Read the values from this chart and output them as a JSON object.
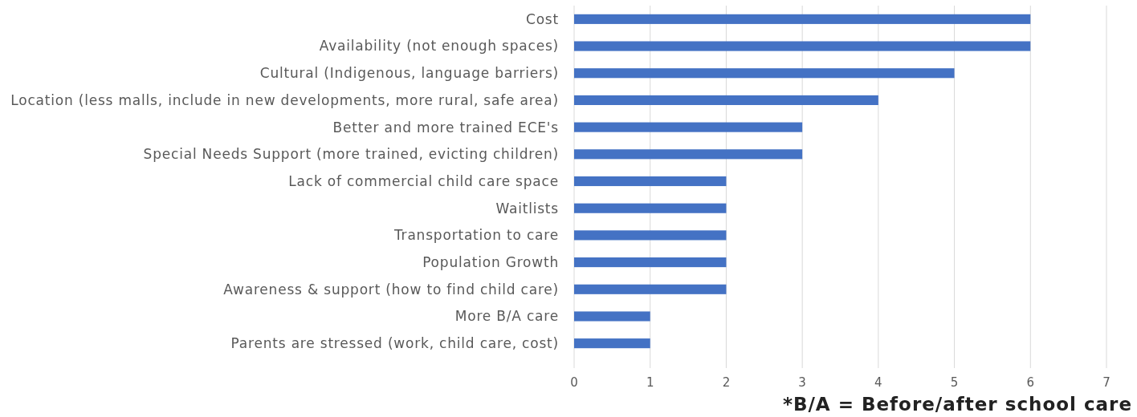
{
  "chart_data": {
    "type": "bar",
    "orientation": "horizontal",
    "categories": [
      "Cost",
      "Availability (not enough spaces)",
      "Cultural (Indigenous, language barriers)",
      "Location (less malls, include in new developments, more rural, safe area)",
      "Better and more trained ECE's",
      "Special Needs Support (more trained, evicting children)",
      "Lack of commercial child care space",
      "Waitlists",
      "Transportation to care",
      "Population Growth",
      "Awareness & support (how to find child care)",
      "More B/A care",
      "Parents are stressed (work, child care, cost)"
    ],
    "values": [
      6,
      6,
      5,
      4,
      3,
      3,
      2,
      2,
      2,
      2,
      2,
      1,
      1
    ],
    "color": "#4472c4",
    "xlim": [
      0,
      7
    ],
    "xticks": [
      0,
      1,
      2,
      3,
      4,
      5,
      6,
      7
    ],
    "grid": "x",
    "annotations": [
      "*B/A = Before/after school care"
    ]
  }
}
